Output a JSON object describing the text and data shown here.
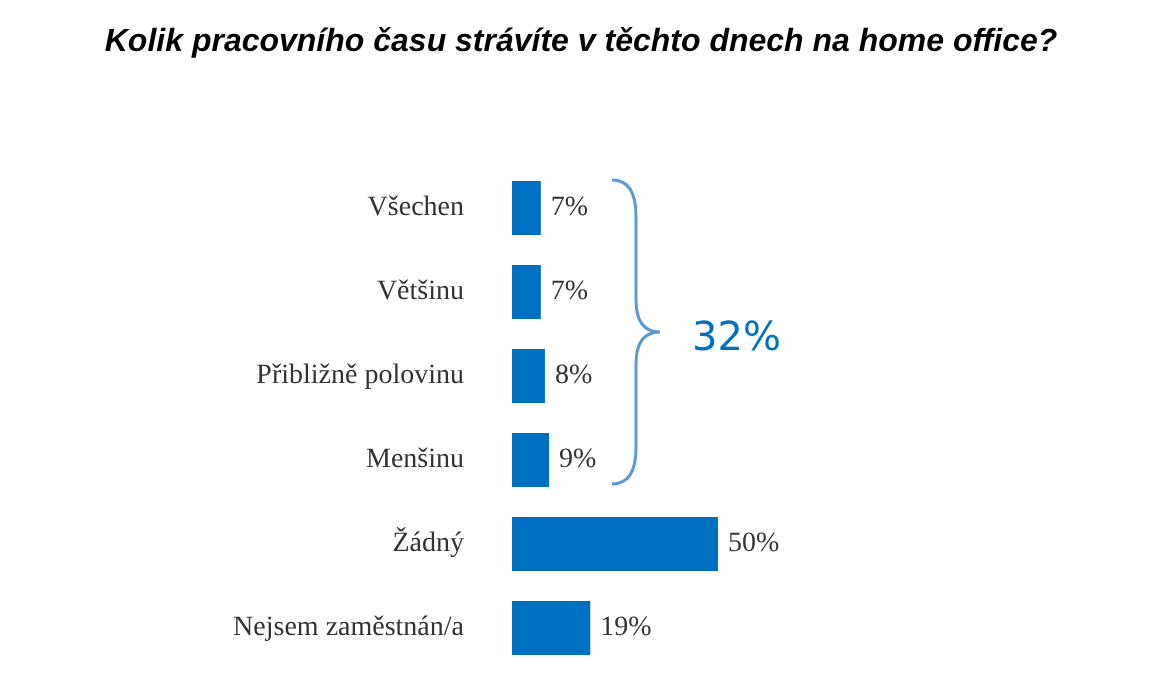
{
  "chart_data": {
    "type": "bar",
    "orientation": "horizontal",
    "title": "Kolik pracovního času strávíte v těchto dnech na home office?",
    "categories": [
      "Všechen",
      "Většinu",
      "Přibližně polovinu",
      "Menšinu",
      "Žádný",
      "Nejsem zaměstnán/a"
    ],
    "values": [
      7,
      7,
      8,
      9,
      50,
      19
    ],
    "color": "#0070c0",
    "data_labels": true,
    "value_labels": [
      "7%",
      "7%",
      "8%",
      "9%",
      "50%",
      "19%"
    ],
    "annotations": [
      "32%"
    ]
  }
}
